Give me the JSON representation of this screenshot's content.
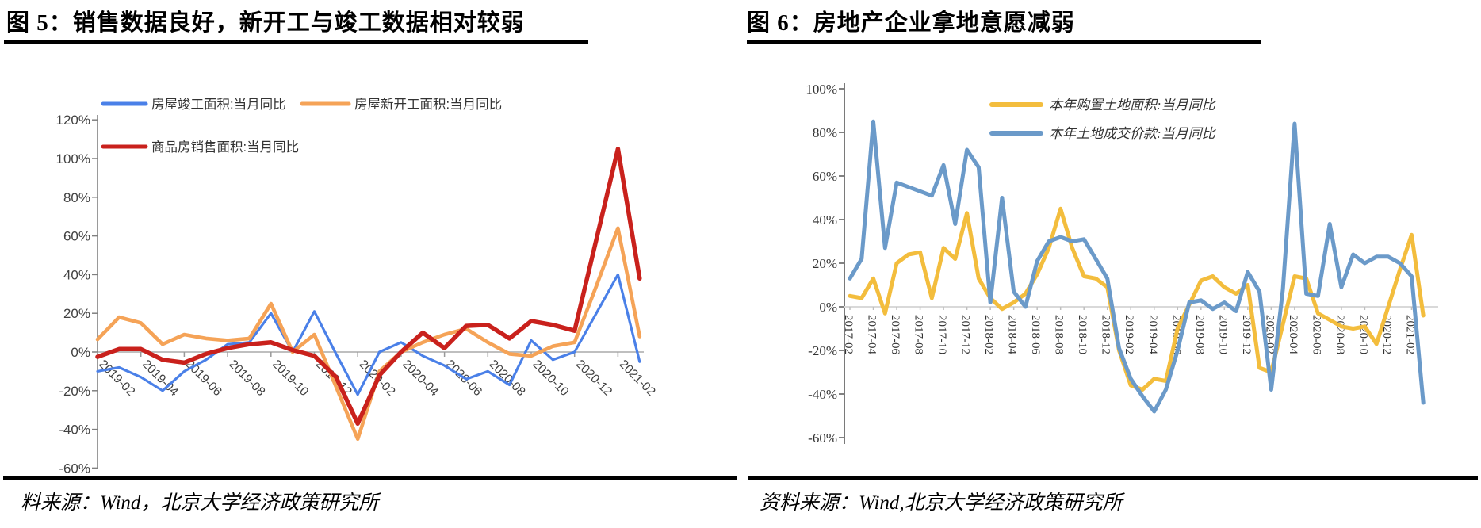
{
  "page": {
    "background": "#ffffff"
  },
  "panels": [
    {
      "title": "图 5：销售数据良好，新开工与竣工数据相对较弱",
      "source": "料来源：Wind，北京大学经济政策研究所"
    },
    {
      "title": "图 6：房地产企业拿地意愿减弱",
      "source": "资料来源：Wind,北京大学经济政策研究所"
    }
  ],
  "chart_data": [
    {
      "type": "line",
      "title": "图 5：销售数据良好，新开工与竣工数据相对较弱",
      "y_axis": {
        "min": -60,
        "max": 120,
        "step": 20,
        "format": "percent"
      },
      "y_tick_labels": [
        "120%",
        "100%",
        "80%",
        "60%",
        "40%",
        "20%",
        "0%",
        "-20%",
        "-40%",
        "-60%"
      ],
      "x_tick_labels": [
        "2019-02",
        "2019-04",
        "2019-06",
        "2019-08",
        "2019-10",
        "2019-12",
        "2020-02",
        "2020-04",
        "2020-06",
        "2020-08",
        "2020-10",
        "2020-12",
        "2021-02"
      ],
      "months": [
        "2019-02",
        "2019-03",
        "2019-04",
        "2019-05",
        "2019-06",
        "2019-07",
        "2019-08",
        "2019-09",
        "2019-10",
        "2019-11",
        "2019-12",
        "2020-01",
        "2020-02",
        "2020-03",
        "2020-04",
        "2020-05",
        "2020-06",
        "2020-07",
        "2020-08",
        "2020-09",
        "2020-10",
        "2020-11",
        "2020-12",
        "2021-01",
        "2021-02",
        "2021-03"
      ],
      "zero_line": true,
      "legend_position": "top",
      "series": [
        {
          "name": "房屋竣工面积:当月同比",
          "color": "#4a80e8",
          "width": 3.2,
          "values": [
            -10,
            -8,
            -13,
            -20,
            -10,
            -4,
            4,
            5,
            20,
            0,
            21,
            -1,
            -22,
            0,
            5,
            -2,
            -7,
            -14,
            -10,
            -17,
            6,
            -4,
            0,
            20,
            40,
            -5
          ]
        },
        {
          "name": "房屋新开工面积:当月同比",
          "color": "#f5a357",
          "width": 4.6,
          "values": [
            6.5,
            18,
            15,
            4,
            9,
            7,
            6,
            7,
            25,
            0,
            9,
            -18,
            -45,
            -10,
            0,
            5,
            9,
            12,
            5,
            -1,
            -2,
            3,
            5,
            34,
            64,
            8
          ]
        },
        {
          "name": "商品房销售面积:当月同比",
          "color": "#c9211c",
          "width": 5.5,
          "values": [
            -2.5,
            1.5,
            1.5,
            -4,
            -5.5,
            -1,
            2,
            4,
            5,
            1,
            -2,
            -13,
            -37,
            -12,
            0,
            10,
            2,
            13.5,
            14,
            7,
            16,
            14,
            11,
            58,
            105,
            38
          ]
        }
      ]
    },
    {
      "type": "line",
      "title": "图 6：房地产企业拿地意愿减弱",
      "y_axis": {
        "min": -60,
        "max": 100,
        "step": 20,
        "format": "percent"
      },
      "y_tick_labels": [
        "100%",
        "80%",
        "60%",
        "40%",
        "20%",
        "0%",
        "-20%",
        "-40%",
        "-60%"
      ],
      "x_tick_labels": [
        "2017-02",
        "2017-04",
        "2017-06",
        "2017-08",
        "2017-10",
        "2017-12",
        "2018-02",
        "2018-04",
        "2018-06",
        "2018-08",
        "2018-10",
        "2018-12",
        "2019-02",
        "2019-04",
        "2019-06",
        "2019-08",
        "2019-10",
        "2019-12",
        "2020-02",
        "2020-04",
        "2020-06",
        "2020-08",
        "2020-10",
        "2020-12",
        "2021-02"
      ],
      "months": [
        "2017-02",
        "2017-03",
        "2017-04",
        "2017-05",
        "2017-06",
        "2017-07",
        "2017-08",
        "2017-09",
        "2017-10",
        "2017-11",
        "2017-12",
        "2018-01",
        "2018-02",
        "2018-03",
        "2018-04",
        "2018-05",
        "2018-06",
        "2018-07",
        "2018-08",
        "2018-09",
        "2018-10",
        "2018-11",
        "2018-12",
        "2019-01",
        "2019-02",
        "2019-03",
        "2019-04",
        "2019-05",
        "2019-06",
        "2019-07",
        "2019-08",
        "2019-09",
        "2019-10",
        "2019-11",
        "2019-12",
        "2020-01",
        "2020-02",
        "2020-03",
        "2020-04",
        "2020-05",
        "2020-06",
        "2020-07",
        "2020-08",
        "2020-09",
        "2020-10",
        "2020-11",
        "2020-12",
        "2021-01",
        "2021-02",
        "2021-03"
      ],
      "zero_line": true,
      "legend_position": "top-right",
      "series": [
        {
          "name": "本年购置土地面积:当月同比",
          "color": "#f3bd3d",
          "width": 5,
          "values": [
            5,
            4,
            13,
            -3,
            20,
            24,
            25,
            4,
            27,
            22,
            43,
            13,
            4,
            -1,
            2,
            6,
            15,
            27,
            45,
            27,
            14,
            13,
            9,
            -20,
            -36,
            -38,
            -33,
            -34,
            -10,
            1,
            12,
            14,
            9,
            6,
            10,
            -28,
            -30,
            -8,
            14,
            13,
            -3,
            -6,
            -9,
            -10,
            -9,
            -17,
            0,
            17,
            33,
            -4
          ]
        },
        {
          "name": "本年土地成交价款:当月同比",
          "color": "#6b9ac9",
          "width": 5,
          "values": [
            13,
            22,
            85,
            27,
            57,
            55,
            53,
            51,
            65,
            38,
            72,
            64,
            2,
            50,
            7,
            0,
            21,
            30,
            32,
            30,
            31,
            22,
            13,
            -19,
            -33,
            -41,
            -48,
            -38,
            -20,
            2,
            3,
            -1,
            2,
            -2,
            16,
            7,
            -38,
            8,
            84,
            6,
            5,
            38,
            9,
            24,
            20,
            23,
            23,
            20,
            14,
            -44
          ]
        }
      ]
    }
  ]
}
